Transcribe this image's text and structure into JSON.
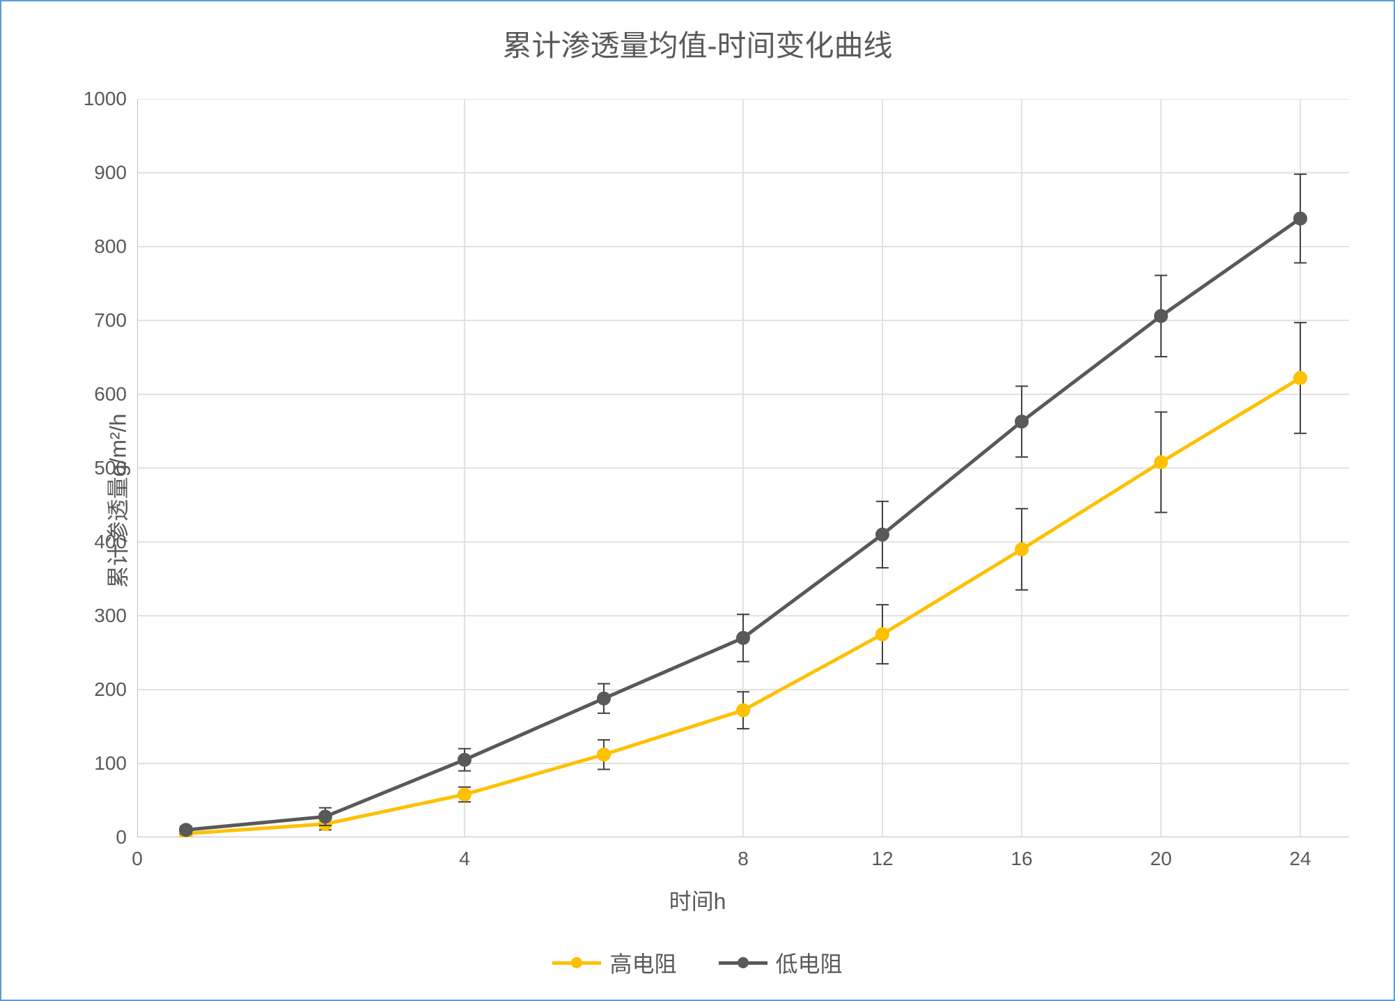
{
  "chart": {
    "type": "line",
    "title": "累计渗透量均值-时间变化曲线",
    "title_fontsize": 42,
    "title_color": "#595959",
    "xlabel": "时间h",
    "ylabel": "累计渗透量g/m²/h",
    "label_fontsize": 32,
    "label_color": "#595959",
    "tick_fontsize": 28,
    "tick_color": "#595959",
    "background_color": "#ffffff",
    "border_color": "#5b9bd5",
    "grid_color": "#d9d9d9",
    "axis_color": "#bfbfbf",
    "xlim": [
      0,
      24
    ],
    "ylim": [
      0,
      1000
    ],
    "xticks": [
      0,
      4,
      8,
      12,
      16,
      20,
      24
    ],
    "yticks": [
      0,
      100,
      200,
      300,
      400,
      500,
      600,
      700,
      800,
      900,
      1000
    ],
    "x_positions": [
      1,
      2,
      4,
      6,
      8,
      12,
      16,
      20,
      24
    ],
    "series": [
      {
        "name": "高电阻",
        "color": "#ffc000",
        "marker_fill": "#ffc000",
        "marker_stroke": "#ffc000",
        "line_width": 5,
        "marker_size": 9,
        "y": [
          5,
          18,
          58,
          112,
          172,
          275,
          390,
          508,
          622
        ],
        "err_low": [
          4,
          8,
          10,
          20,
          25,
          40,
          55,
          68,
          75
        ],
        "err_high": [
          4,
          8,
          10,
          20,
          25,
          40,
          55,
          68,
          75
        ]
      },
      {
        "name": "低电阻",
        "color": "#595959",
        "marker_fill": "#595959",
        "marker_stroke": "#595959",
        "line_width": 5,
        "marker_size": 9,
        "y": [
          10,
          28,
          105,
          188,
          270,
          410,
          563,
          706,
          838
        ],
        "err_low": [
          5,
          12,
          15,
          20,
          32,
          45,
          48,
          55,
          60
        ],
        "err_high": [
          5,
          12,
          15,
          20,
          32,
          45,
          48,
          55,
          60
        ]
      }
    ],
    "error_bar_color": "#404040",
    "error_bar_width": 2,
    "error_cap_width": 18,
    "legend": {
      "items": [
        "高电阻",
        "低电阻"
      ],
      "position": "bottom"
    }
  }
}
